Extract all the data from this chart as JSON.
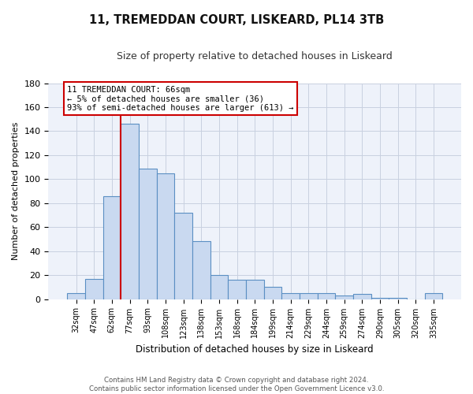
{
  "title": "11, TREMEDDAN COURT, LISKEARD, PL14 3TB",
  "subtitle": "Size of property relative to detached houses in Liskeard",
  "xlabel": "Distribution of detached houses by size in Liskeard",
  "ylabel": "Number of detached properties",
  "bar_labels": [
    "32sqm",
    "47sqm",
    "62sqm",
    "77sqm",
    "93sqm",
    "108sqm",
    "123sqm",
    "138sqm",
    "153sqm",
    "168sqm",
    "184sqm",
    "199sqm",
    "214sqm",
    "229sqm",
    "244sqm",
    "259sqm",
    "274sqm",
    "290sqm",
    "305sqm",
    "320sqm",
    "335sqm"
  ],
  "bar_values": [
    5,
    17,
    86,
    146,
    109,
    105,
    72,
    48,
    20,
    16,
    16,
    10,
    5,
    5,
    5,
    3,
    4,
    1,
    1,
    0,
    5
  ],
  "bar_color": "#c9d9f0",
  "bar_edge_color": "#5b8fc3",
  "vline_color": "#cc0000",
  "ylim": [
    0,
    180
  ],
  "yticks": [
    0,
    20,
    40,
    60,
    80,
    100,
    120,
    140,
    160,
    180
  ],
  "annotation_line1": "11 TREMEDDAN COURT: 66sqm",
  "annotation_line2": "← 5% of detached houses are smaller (36)",
  "annotation_line3": "93% of semi-detached houses are larger (613) →",
  "annotation_box_color": "#ffffff",
  "annotation_box_edge": "#cc0000",
  "footer_line1": "Contains HM Land Registry data © Crown copyright and database right 2024.",
  "footer_line2": "Contains public sector information licensed under the Open Government Licence v3.0.",
  "bg_color": "#eef2fa",
  "grid_color": "#c8d0e0"
}
